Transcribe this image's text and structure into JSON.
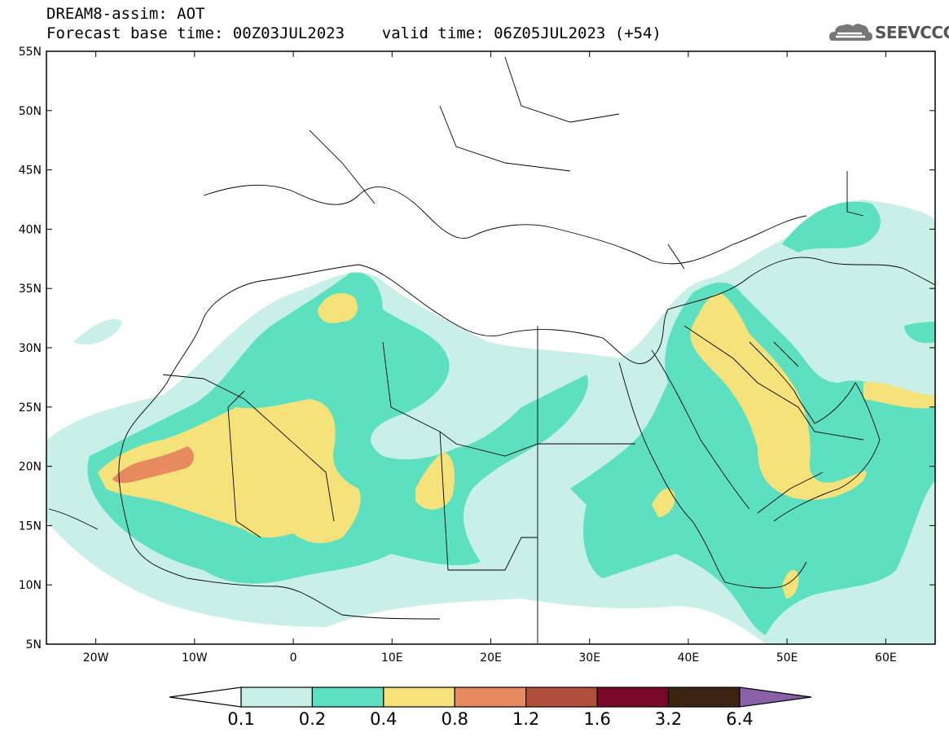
{
  "header": {
    "title_line1": "DREAM8-assim: AOT",
    "title_line2": "Forecast base time: 00Z03JUL2023    valid time: 06Z05JUL2023 (+54)"
  },
  "logo": {
    "text": "SEEVCCC",
    "icon": "cloud-icon"
  },
  "map": {
    "lat_range": [
      5,
      55
    ],
    "lon_range": [
      -25,
      65
    ],
    "lat_labels": [
      "5N",
      "10N",
      "15N",
      "20N",
      "25N",
      "30N",
      "35N",
      "40N",
      "45N",
      "50N",
      "55N"
    ],
    "lon_labels": [
      "20W",
      "10W",
      "0",
      "10E",
      "20E",
      "30E",
      "40E",
      "50E",
      "60E"
    ],
    "lon_label_values": [
      -20,
      -10,
      0,
      10,
      20,
      30,
      40,
      50,
      60
    ],
    "lat_label_values": [
      5,
      10,
      15,
      20,
      25,
      30,
      35,
      40,
      45,
      50,
      55
    ]
  },
  "colorbar": {
    "labels": [
      "0.1",
      "0.2",
      "0.4",
      "0.8",
      "1.2",
      "1.6",
      "3.2",
      "6.4"
    ],
    "colors": [
      "#ffffff",
      "#c8f0e8",
      "#5ce0c0",
      "#f5e27a",
      "#e88a60",
      "#b04e3c",
      "#7a0828",
      "#3c2410",
      "#8a60a8"
    ]
  },
  "field_colors": {
    "level_0_1": "#c8f0e8",
    "level_0_2": "#5ce0c0",
    "level_0_4": "#f5e27a",
    "level_0_8": "#e88a60"
  }
}
